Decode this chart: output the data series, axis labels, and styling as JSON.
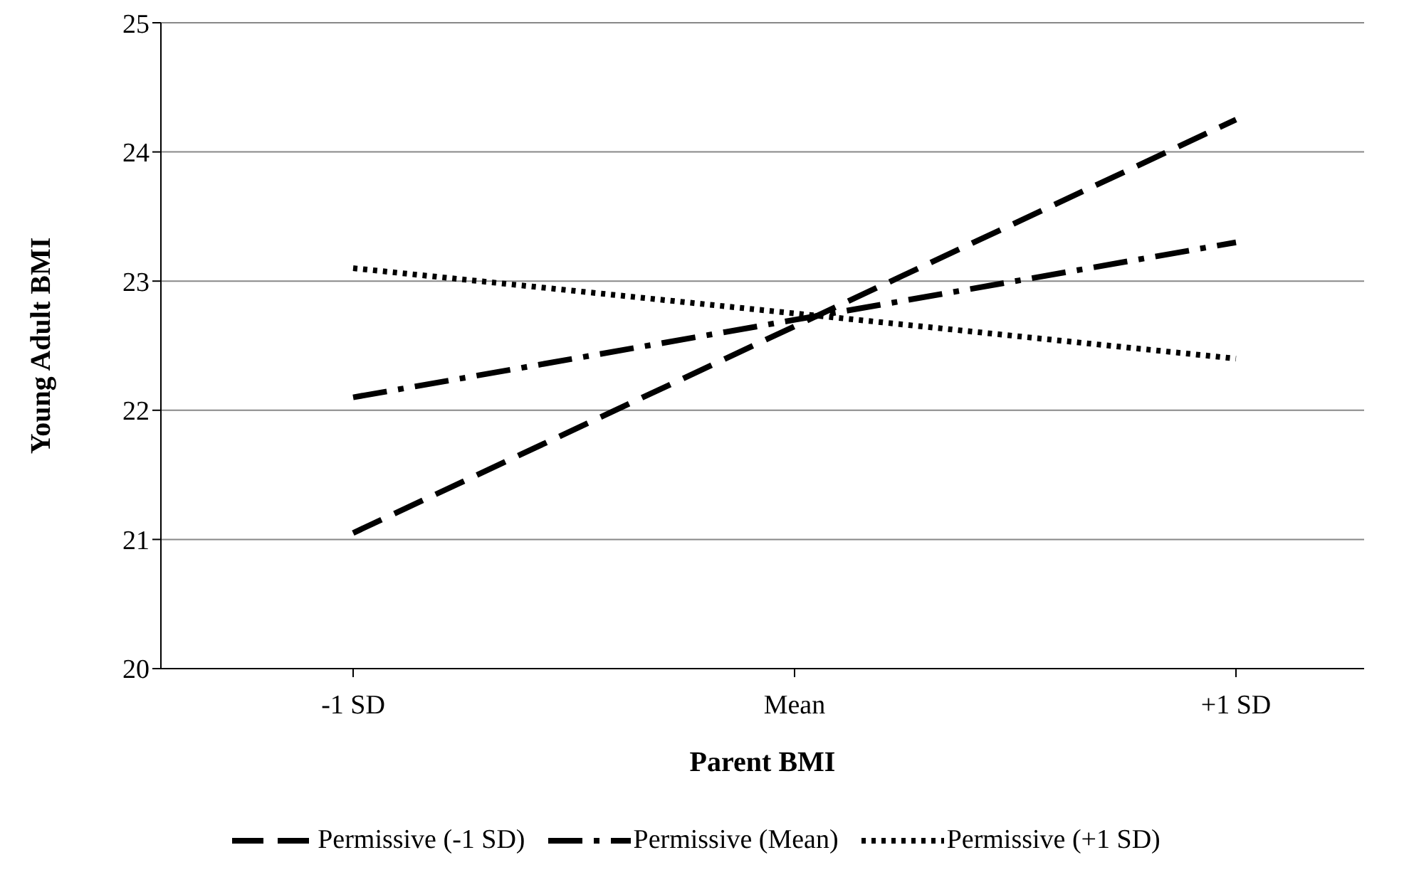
{
  "chart_data": {
    "type": "line",
    "xlabel": "Parent BMI",
    "ylabel": "Young Adult BMI",
    "categories": [
      "-1 SD",
      "Mean",
      "+1 SD"
    ],
    "series": [
      {
        "name": "Permissive (-1 SD)",
        "color": "#000000",
        "line_style": "dashed",
        "values": [
          21.05,
          22.65,
          24.25
        ]
      },
      {
        "name": "Permissive (Mean)",
        "color": "#000000",
        "line_style": "dashdot",
        "values": [
          22.1,
          22.7,
          23.3
        ]
      },
      {
        "name": "Permissive (+1 SD)",
        "color": "#000000",
        "line_style": "dotted",
        "values": [
          23.1,
          22.75,
          22.4
        ]
      }
    ],
    "ylim": [
      20,
      25
    ],
    "yticks": [
      20,
      21,
      22,
      23,
      24,
      25
    ],
    "grid": "y",
    "legend": "bottom",
    "marker": "none"
  }
}
